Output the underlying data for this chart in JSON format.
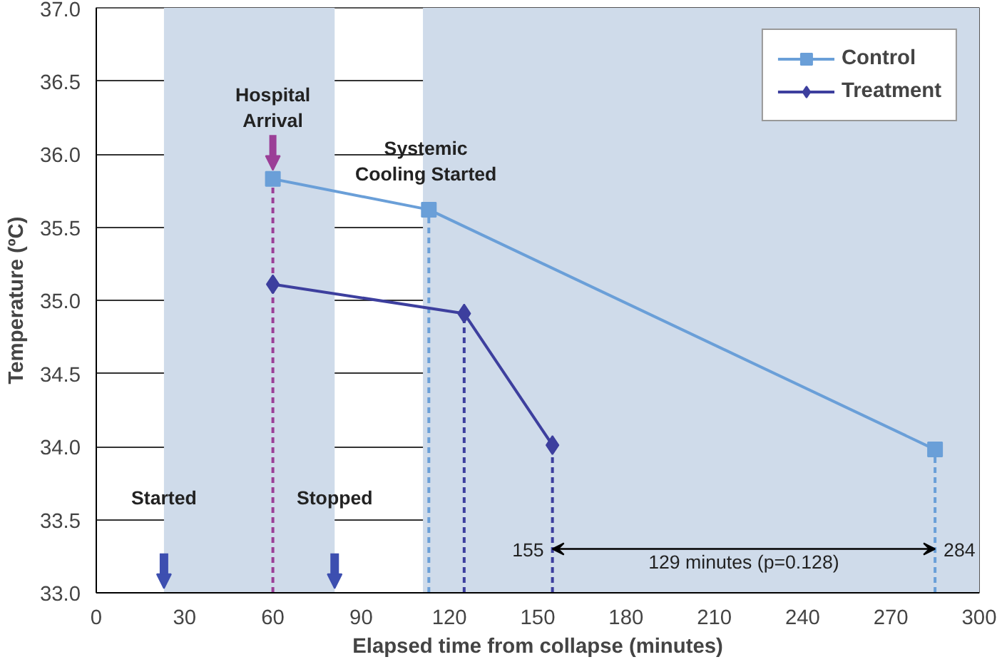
{
  "chart_data": {
    "type": "line",
    "xlabel": "Elapsed time from collapse (minutes)",
    "ylabel": "Temperature (ºC)",
    "series": [
      {
        "name": "Control",
        "color": "#6a9fd8",
        "marker": "square",
        "x": [
          60,
          113,
          285
        ],
        "values": [
          35.83,
          35.62,
          33.98
        ]
      },
      {
        "name": "Treatment",
        "color": "#3d3f9e",
        "marker": "diamond",
        "x": [
          60,
          125,
          155
        ],
        "values": [
          35.11,
          34.91,
          34.01
        ]
      }
    ],
    "xlim": [
      0,
      300
    ],
    "xticks": [
      0,
      30,
      60,
      90,
      120,
      150,
      180,
      210,
      240,
      270,
      300
    ],
    "ylim": [
      33,
      37
    ],
    "yticks": [
      {
        "value": 33,
        "label": "33.0"
      },
      {
        "value": 33.5,
        "label": "33.5"
      },
      {
        "value": 34,
        "label": "34.0"
      },
      {
        "value": 34.5,
        "label": "34.5"
      },
      {
        "value": 35,
        "label": "35.0"
      },
      {
        "value": 35.5,
        "label": "35.5"
      },
      {
        "value": 36,
        "label": "36.0"
      },
      {
        "value": 36.5,
        "label": "36.5"
      },
      {
        "value": 37,
        "label": "37.0"
      }
    ],
    "bands": [
      {
        "axis": "x",
        "from": 23,
        "to": 81,
        "color": "#cfdbea"
      },
      {
        "axis": "x",
        "from": 111,
        "to": 300,
        "color": "#cfdbea"
      }
    ],
    "ref_lines": [
      {
        "axis": "x",
        "value": 60,
        "color": "#9b3f97",
        "line_style": "dashed"
      },
      {
        "axis": "x",
        "value": 113,
        "color": "#6a9fd8",
        "line_style": "dashed"
      },
      {
        "axis": "x",
        "value": 125,
        "color": "#3d3f9e",
        "line_style": "dashed"
      },
      {
        "axis": "x",
        "value": 155,
        "color": "#3d3f9e",
        "line_style": "dashed"
      },
      {
        "axis": "x",
        "value": 285,
        "color": "#6a9fd8",
        "line_style": "dashed"
      }
    ],
    "annotations": [
      {
        "text": "Hospital\nArrival",
        "x": 60,
        "y": 35.83
      },
      {
        "text": "Systemic\nCooling Started",
        "x": 112,
        "y": 35.95
      },
      {
        "text": "Started",
        "x": 23,
        "y": 33.65
      },
      {
        "text": "Stopped",
        "x": 81,
        "y": 33.65
      },
      {
        "text": "155",
        "x": 155,
        "y": 33.3
      },
      {
        "text": "284",
        "x": 285,
        "y": 33.3
      },
      "129 minutes (p=0.128)"
    ],
    "grid": "y",
    "legend": "top right",
    "line_style": "solid"
  }
}
